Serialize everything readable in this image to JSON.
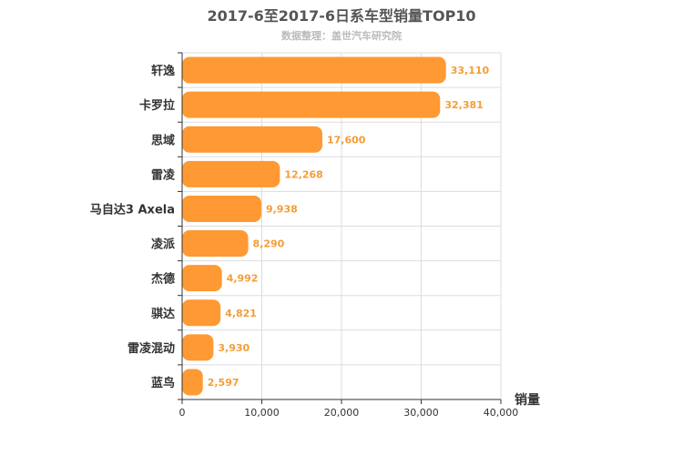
{
  "header": {
    "title": "2017-6至2017-6日系车型销量TOP10",
    "subtitle": "数据整理：盖世汽车研究院"
  },
  "chart_data": {
    "type": "bar",
    "orientation": "horizontal",
    "title": "2017-6至2017-6日系车型销量TOP10",
    "subtitle": "数据整理：盖世汽车研究院",
    "categories": [
      "轩逸",
      "卡罗拉",
      "思域",
      "雷凌",
      "马自达3 Axela",
      "凌派",
      "杰德",
      "骐达",
      "雷凌混动",
      "蓝鸟"
    ],
    "values": [
      33110,
      32381,
      17600,
      12268,
      9938,
      8290,
      4992,
      4821,
      3930,
      2597
    ],
    "value_labels": [
      "33,110",
      "32,381",
      "17,600",
      "12,268",
      "9,938",
      "8,290",
      "4,992",
      "4,821",
      "3,930",
      "2,597"
    ],
    "xlabel": "销量",
    "xlim": [
      0,
      40000
    ],
    "ticks": [
      "0",
      "10,000",
      "20,000",
      "30,000",
      "40,000"
    ],
    "tick_values": [
      0,
      10000,
      20000,
      30000,
      40000
    ],
    "grid": true,
    "bar_color": "#ff9933",
    "label_color": "#f49d37"
  }
}
